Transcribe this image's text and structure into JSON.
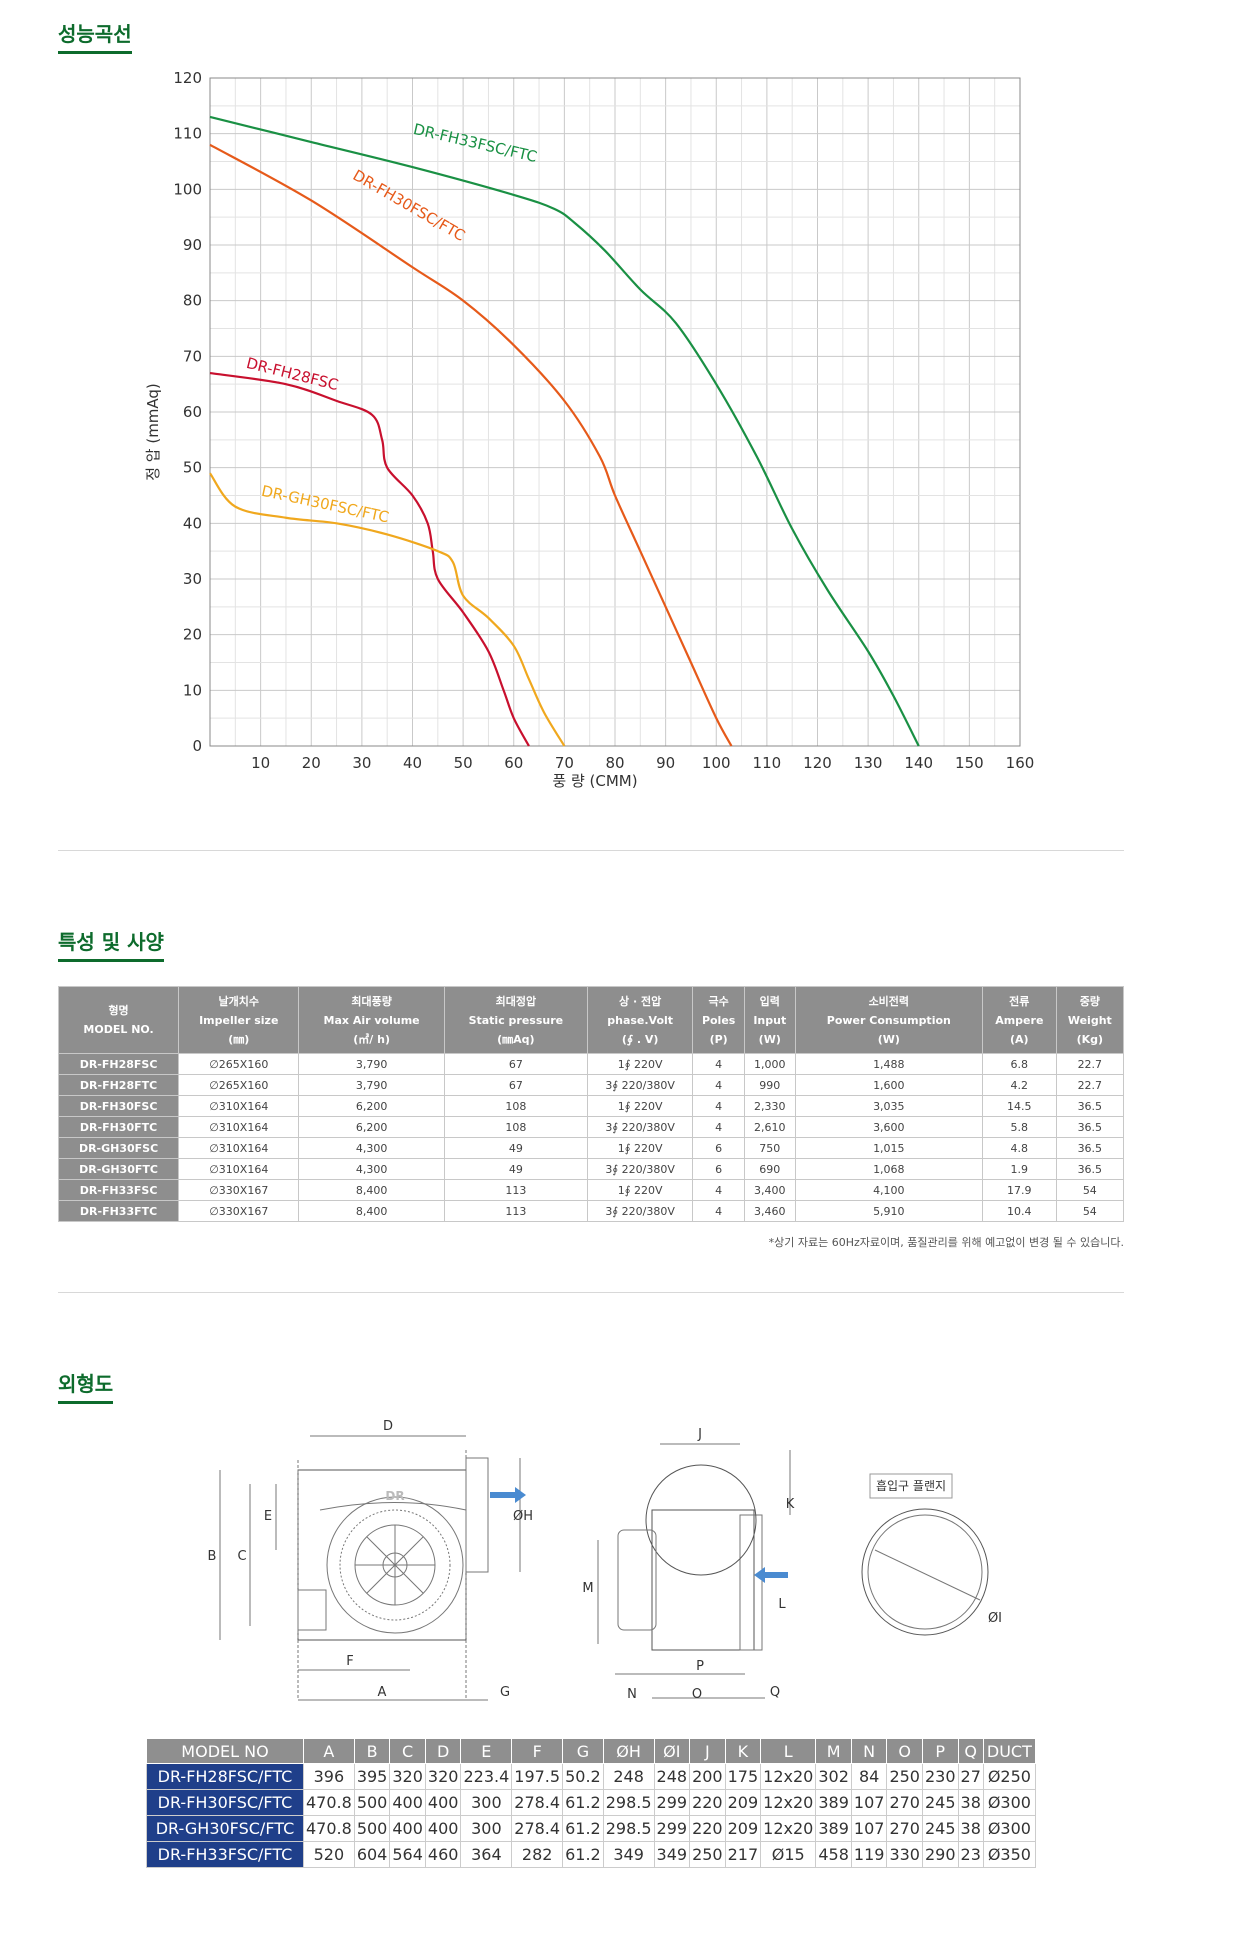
{
  "sections": {
    "performance_title": "성능곡선",
    "spec_title": "특성 및 사양",
    "outline_title": "외형도"
  },
  "chart_data": {
    "type": "line",
    "xlabel": "풍 량 (CMM)",
    "ylabel": "정 압 (mmAq)",
    "xlim": [
      0,
      160
    ],
    "ylim": [
      0,
      120
    ],
    "x_ticks": [
      10,
      20,
      30,
      40,
      50,
      60,
      70,
      80,
      90,
      100,
      110,
      120,
      130,
      140,
      150,
      160
    ],
    "y_ticks": [
      0,
      10,
      20,
      30,
      40,
      50,
      60,
      70,
      80,
      90,
      100,
      110,
      120
    ],
    "grid": true,
    "series": [
      {
        "name": "DR-FH33FSC/FTC",
        "color": "#1a9044",
        "points": [
          [
            0,
            113
          ],
          [
            20,
            108.5
          ],
          [
            40,
            104
          ],
          [
            60,
            99
          ],
          [
            68,
            96.5
          ],
          [
            72,
            94
          ],
          [
            78,
            89
          ],
          [
            85,
            82
          ],
          [
            92,
            76
          ],
          [
            100,
            65
          ],
          [
            108,
            52
          ],
          [
            115,
            39
          ],
          [
            122,
            28
          ],
          [
            130,
            17
          ],
          [
            135,
            9
          ],
          [
            140,
            0
          ]
        ]
      },
      {
        "name": "DR-FH30FSC/FTC",
        "color": "#e65a1a",
        "points": [
          [
            0,
            108
          ],
          [
            20,
            98
          ],
          [
            40,
            86
          ],
          [
            50,
            80
          ],
          [
            60,
            72
          ],
          [
            70,
            62
          ],
          [
            77,
            52
          ],
          [
            80,
            45
          ],
          [
            85,
            35
          ],
          [
            90,
            25
          ],
          [
            95,
            15
          ],
          [
            100,
            5
          ],
          [
            103,
            0
          ]
        ]
      },
      {
        "name": "DR-FH28FSC",
        "color": "#c8102e",
        "points": [
          [
            0,
            67
          ],
          [
            15,
            65
          ],
          [
            25,
            62
          ],
          [
            32,
            59.5
          ],
          [
            34,
            55
          ],
          [
            35,
            50
          ],
          [
            40,
            45
          ],
          [
            43,
            40
          ],
          [
            44,
            35
          ],
          [
            45,
            30
          ],
          [
            50,
            24
          ],
          [
            55,
            17
          ],
          [
            58,
            10
          ],
          [
            60,
            5
          ],
          [
            63,
            0
          ]
        ]
      },
      {
        "name": "DR-GH30FSC/FTC",
        "color": "#f0a81e",
        "points": [
          [
            0,
            49
          ],
          [
            5,
            43
          ],
          [
            15,
            41
          ],
          [
            25,
            40
          ],
          [
            35,
            38
          ],
          [
            45,
            35
          ],
          [
            48,
            33
          ],
          [
            50,
            27
          ],
          [
            55,
            23
          ],
          [
            60,
            18
          ],
          [
            63,
            12
          ],
          [
            66,
            6
          ],
          [
            70,
            0
          ]
        ]
      }
    ]
  },
  "spec": {
    "headers": [
      {
        "ko": "형명",
        "en": "MODEL NO.",
        "unit": ""
      },
      {
        "ko": "날개치수",
        "en": "Impeller size",
        "unit": "(㎜)"
      },
      {
        "ko": "최대풍량",
        "en": "Max Air volume",
        "unit": "(㎥/ h)"
      },
      {
        "ko": "최대정압",
        "en": "Static pressure",
        "unit": "(㎜Aq)"
      },
      {
        "ko": "상 · 전압",
        "en": "phase.Volt",
        "unit": "(∮ . V)"
      },
      {
        "ko": "극수",
        "en": "Poles",
        "unit": "(P)"
      },
      {
        "ko": "입력",
        "en": "Input",
        "unit": "(W)"
      },
      {
        "ko": "소비전력",
        "en": "Power Consumption",
        "unit": "(W)"
      },
      {
        "ko": "전류",
        "en": "Ampere",
        "unit": "(A)"
      },
      {
        "ko": "중량",
        "en": "Weight",
        "unit": "(Kg)"
      }
    ],
    "rows": [
      [
        "DR-FH28FSC",
        "∅265X160",
        "3,790",
        "67",
        "1∮ 220V",
        "4",
        "1,000",
        "1,488",
        "6.8",
        "22.7"
      ],
      [
        "DR-FH28FTC",
        "∅265X160",
        "3,790",
        "67",
        "3∮ 220/380V",
        "4",
        "990",
        "1,600",
        "4.2",
        "22.7"
      ],
      [
        "DR-FH30FSC",
        "∅310X164",
        "6,200",
        "108",
        "1∮ 220V",
        "4",
        "2,330",
        "3,035",
        "14.5",
        "36.5"
      ],
      [
        "DR-FH30FTC",
        "∅310X164",
        "6,200",
        "108",
        "3∮ 220/380V",
        "4",
        "2,610",
        "3,600",
        "5.8",
        "36.5"
      ],
      [
        "DR-GH30FSC",
        "∅310X164",
        "4,300",
        "49",
        "1∮ 220V",
        "6",
        "750",
        "1,015",
        "4.8",
        "36.5"
      ],
      [
        "DR-GH30FTC",
        "∅310X164",
        "4,300",
        "49",
        "3∮ 220/380V",
        "6",
        "690",
        "1,068",
        "1.9",
        "36.5"
      ],
      [
        "DR-FH33FSC",
        "∅330X167",
        "8,400",
        "113",
        "1∮ 220V",
        "4",
        "3,400",
        "4,100",
        "17.9",
        "54"
      ],
      [
        "DR-FH33FTC",
        "∅330X167",
        "8,400",
        "113",
        "3∮ 220/380V",
        "4",
        "3,460",
        "5,910",
        "10.4",
        "54"
      ]
    ],
    "note": "*상기 자료는 60Hz자료이며, 품질관리를 위해 예고없이 변경 될 수 있습니다."
  },
  "outline": {
    "front_labels": {
      "d": "D",
      "b": "B",
      "c": "C",
      "e": "E",
      "f": "F",
      "a": "A",
      "g": "G",
      "oh": "ØH"
    },
    "side_labels": {
      "j": "J",
      "k": "K",
      "m": "M",
      "l": "L",
      "p": "P",
      "n": "N",
      "o": "O",
      "q": "Q"
    },
    "flange_title": "흡입구 플랜지",
    "flange_label": "ØI",
    "logo": "DR"
  },
  "dims": {
    "headers": [
      "MODEL NO",
      "A",
      "B",
      "C",
      "D",
      "E",
      "F",
      "G",
      "ØH",
      "ØI",
      "J",
      "K",
      "L",
      "M",
      "N",
      "O",
      "P",
      "Q",
      "DUCT"
    ],
    "rows": [
      [
        "DR-FH28FSC/FTC",
        "396",
        "395",
        "320",
        "320",
        "223.4",
        "197.5",
        "50.2",
        "248",
        "248",
        "200",
        "175",
        "12x20",
        "302",
        "84",
        "250",
        "230",
        "27",
        "Ø250"
      ],
      [
        "DR-FH30FSC/FTC",
        "470.8",
        "500",
        "400",
        "400",
        "300",
        "278.4",
        "61.2",
        "298.5",
        "299",
        "220",
        "209",
        "12x20",
        "389",
        "107",
        "270",
        "245",
        "38",
        "Ø300"
      ],
      [
        "DR-GH30FSC/FTC",
        "470.8",
        "500",
        "400",
        "400",
        "300",
        "278.4",
        "61.2",
        "298.5",
        "299",
        "220",
        "209",
        "12x20",
        "389",
        "107",
        "270",
        "245",
        "38",
        "Ø300"
      ],
      [
        "DR-FH33FSC/FTC",
        "520",
        "604",
        "564",
        "460",
        "364",
        "282",
        "61.2",
        "349",
        "349",
        "250",
        "217",
        "Ø15",
        "458",
        "119",
        "330",
        "290",
        "23",
        "Ø350"
      ]
    ]
  }
}
